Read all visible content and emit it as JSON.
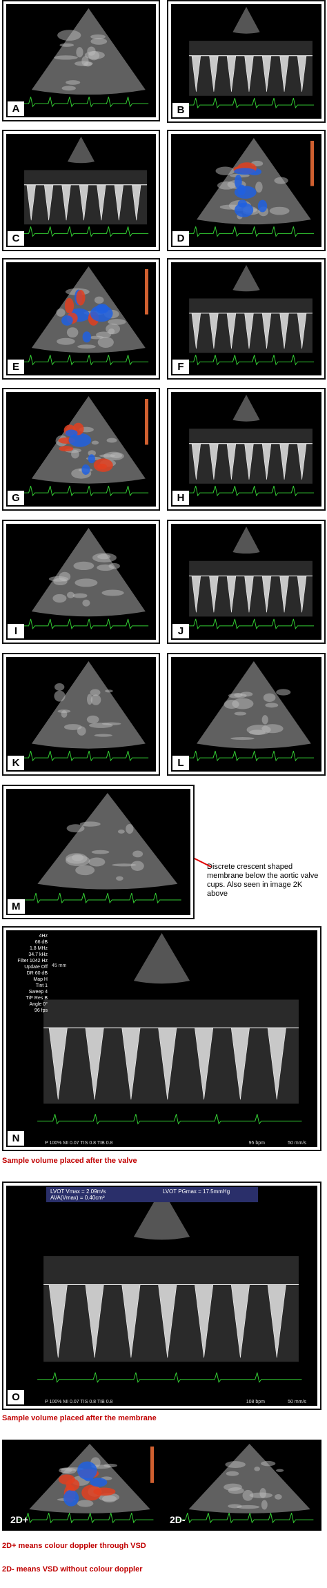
{
  "panels": [
    {
      "label": "A"
    },
    {
      "label": "B"
    },
    {
      "label": "C"
    },
    {
      "label": "D"
    },
    {
      "label": "E"
    },
    {
      "label": "F"
    },
    {
      "label": "G"
    },
    {
      "label": "H"
    },
    {
      "label": "I"
    },
    {
      "label": "J"
    },
    {
      "label": "K"
    },
    {
      "label": "L"
    },
    {
      "label": "M"
    },
    {
      "label": "N",
      "settings": [
        "4Hz",
        "66 dB",
        "1.8 MHz",
        "34.7 kHz",
        "Filter 1042 Hz",
        "Update Off",
        "DR 60 dB",
        "Map H",
        "Tint 1",
        "Sweep 4",
        "T/F Res B",
        "Angle 0°",
        "96 fps"
      ],
      "depth": "45 mm",
      "footer": "P 100%  MI 0.07  TIS 0.8  TIB 0.8",
      "rate": "95 bpm",
      "speed": "50 mm/s"
    },
    {
      "label": "O",
      "measurements": [
        "LVOT Vmax = 2.09m/s",
        "LVOT PGmax = 17.5mmHg",
        "AVA(Vmax) = 0.40cm²"
      ],
      "footer": "P 100%  MI 0.07  TIS 0.8  TIB 0.8",
      "rate": "108 bpm",
      "speed": "50 mm/s"
    },
    {
      "label": "2D+"
    },
    {
      "label": "2D-"
    }
  ],
  "annotation": "Discrete crescent shaped membrane below the aortic valve cups. Also seen in image 2K above",
  "captions": [
    "Sample volume placed after the valve",
    "Sample volume placed after the membrane",
    "2D+ means colour doppler through VSD",
    "2D- means VSD without colour doppler"
  ]
}
